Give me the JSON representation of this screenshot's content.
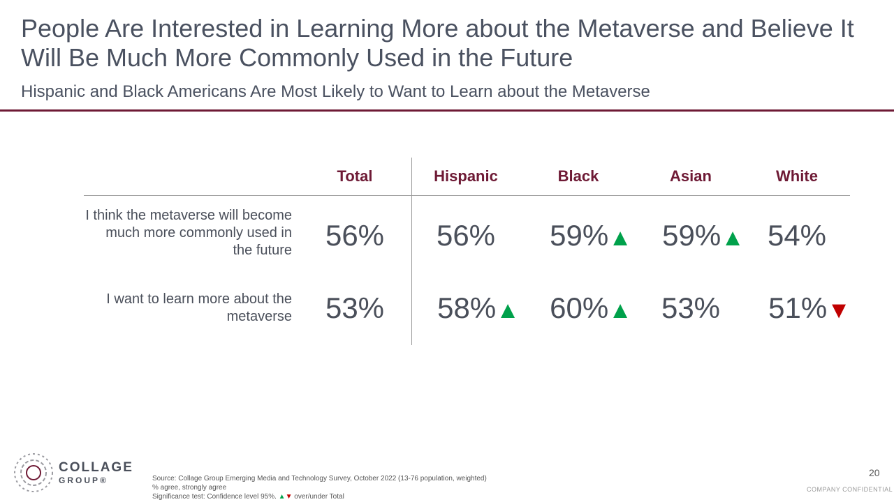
{
  "header": {
    "title": "People Are Interested in Learning More about the Metaverse and Believe It Will Be Much More Commonly Used in the Future",
    "subtitle": "Hispanic and Black Americans Are Most Likely to Want to Learn about the Metaverse"
  },
  "chart_data": {
    "type": "table",
    "columns": [
      "Total",
      "Hispanic",
      "Black",
      "Asian",
      "White"
    ],
    "rows": [
      {
        "label": "I think the metaverse will become much more commonly used in the future",
        "values": [
          56,
          56,
          59,
          59,
          54
        ],
        "display": [
          "56%",
          "56%",
          "59%",
          "59%",
          "54%"
        ],
        "significance": [
          "",
          "",
          "up",
          "up",
          ""
        ]
      },
      {
        "label": "I want to learn more about the metaverse",
        "values": [
          53,
          58,
          60,
          53,
          51
        ],
        "display": [
          "53%",
          "58%",
          "60%",
          "53%",
          "51%"
        ],
        "significance": [
          "",
          "up",
          "up",
          "",
          "down"
        ]
      }
    ],
    "colors": {
      "up": "#00a14b",
      "down": "#c00000",
      "header": "#6e1a35"
    }
  },
  "footer": {
    "logo_line1": "COLLAGE",
    "logo_line2": "GROUP®",
    "source_line1": "Source: Collage Group Emerging Media and Technology Survey, October 2022 (13-76 population, weighted)",
    "source_line2": "% agree, strongly agree",
    "source_line3_prefix": "Significance test: Confidence level 95%.",
    "source_line3_suffix": "over/under Total",
    "page_number": "20",
    "confidential": "COMPANY CONFIDENTIAL"
  },
  "icons": {
    "up": "▲",
    "down": "▼"
  }
}
